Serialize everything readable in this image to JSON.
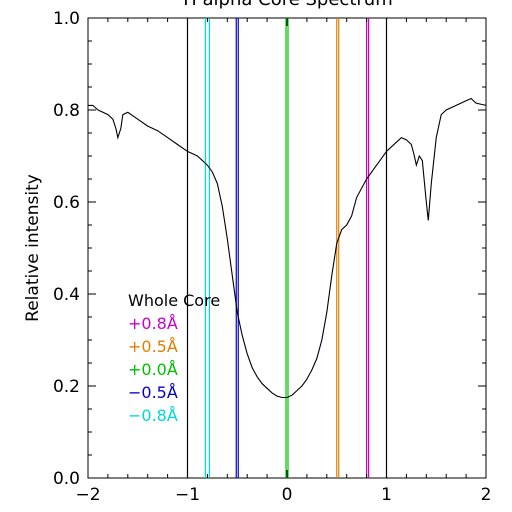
{
  "chart_data": {
    "type": "line",
    "title": "H alpha Core Spectrum",
    "xlabel": "",
    "ylabel": "Relative intensity",
    "xlim": [
      -2,
      2
    ],
    "ylim": [
      0,
      1
    ],
    "x_ticks": [
      -2,
      -1,
      0,
      1,
      2
    ],
    "y_ticks": [
      0.0,
      0.2,
      0.4,
      0.6,
      0.8,
      1.0
    ],
    "x_tick_labels": [
      "−2",
      "−1",
      "0",
      "1",
      "2"
    ],
    "y_tick_labels": [
      "0.0",
      "0.2",
      "0.4",
      "0.6",
      "0.8",
      "1.0"
    ],
    "grid": false,
    "legend_position": "left",
    "series": [
      {
        "color": "#000000",
        "x": [
          -2.0,
          -1.95,
          -1.9,
          -1.85,
          -1.8,
          -1.75,
          -1.72,
          -1.7,
          -1.67,
          -1.65,
          -1.6,
          -1.5,
          -1.4,
          -1.3,
          -1.2,
          -1.1,
          -1.0,
          -0.9,
          -0.8,
          -0.75,
          -0.7,
          -0.65,
          -0.6,
          -0.55,
          -0.5,
          -0.45,
          -0.4,
          -0.35,
          -0.3,
          -0.25,
          -0.2,
          -0.15,
          -0.1,
          -0.05,
          0.0,
          0.05,
          0.1,
          0.15,
          0.2,
          0.25,
          0.3,
          0.35,
          0.4,
          0.45,
          0.5,
          0.55,
          0.6,
          0.65,
          0.7,
          0.8,
          0.9,
          1.0,
          1.1,
          1.15,
          1.2,
          1.25,
          1.28,
          1.3,
          1.33,
          1.36,
          1.4,
          1.42,
          1.45,
          1.5,
          1.55,
          1.6,
          1.7,
          1.8,
          1.85,
          1.9,
          2.0
        ],
        "y": [
          0.81,
          0.81,
          0.8,
          0.795,
          0.79,
          0.78,
          0.76,
          0.74,
          0.76,
          0.79,
          0.795,
          0.78,
          0.765,
          0.755,
          0.74,
          0.725,
          0.71,
          0.7,
          0.68,
          0.665,
          0.64,
          0.59,
          0.52,
          0.44,
          0.36,
          0.31,
          0.27,
          0.24,
          0.22,
          0.205,
          0.195,
          0.185,
          0.178,
          0.175,
          0.175,
          0.18,
          0.19,
          0.2,
          0.215,
          0.235,
          0.26,
          0.3,
          0.36,
          0.44,
          0.51,
          0.54,
          0.55,
          0.57,
          0.61,
          0.65,
          0.68,
          0.71,
          0.73,
          0.74,
          0.735,
          0.725,
          0.7,
          0.68,
          0.7,
          0.69,
          0.6,
          0.56,
          0.64,
          0.74,
          0.79,
          0.8,
          0.81,
          0.82,
          0.825,
          0.815,
          0.81
        ]
      }
    ],
    "vertical_lines": [
      {
        "x": -1.0,
        "color": "#000000"
      },
      {
        "x": 1.0,
        "color": "#000000"
      },
      {
        "x": 0.8,
        "color": "#cc00cc"
      },
      {
        "x": 0.82,
        "color": "#cc00cc"
      },
      {
        "x": 0.5,
        "color": "#e08000"
      },
      {
        "x": 0.52,
        "color": "#e08000"
      },
      {
        "x": -0.01,
        "color": "#00c000"
      },
      {
        "x": 0.01,
        "color": "#00c000"
      },
      {
        "x": -0.51,
        "color": "#0000cc"
      },
      {
        "x": -0.49,
        "color": "#0000cc"
      },
      {
        "x": -0.82,
        "color": "#00d8d8"
      },
      {
        "x": -0.78,
        "color": "#00d8d8"
      }
    ],
    "legend": [
      {
        "label": "Whole Core",
        "color": "#000000"
      },
      {
        "label": "+0.8Å",
        "color": "#cc00cc"
      },
      {
        "label": "+0.5Å",
        "color": "#e08000"
      },
      {
        "label": "+0.0Å",
        "color": "#00c000"
      },
      {
        "label": "−0.5Å",
        "color": "#0000cc"
      },
      {
        "label": "−0.8Å",
        "color": "#00d8d8"
      }
    ]
  }
}
